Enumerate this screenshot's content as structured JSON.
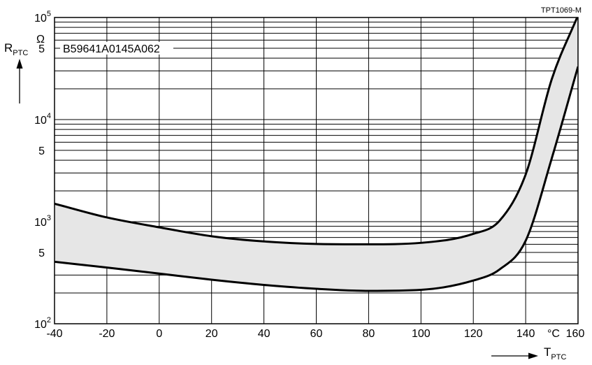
{
  "chart_data": {
    "type": "area",
    "title": "B59641A0145A062",
    "figure_code": "TPT1069-M",
    "x": [
      -40,
      -20,
      0,
      20,
      40,
      60,
      80,
      100,
      120,
      130,
      140,
      150,
      160
    ],
    "series": [
      {
        "name": "",
        "values": [
          1500,
          1100,
          880,
          720,
          640,
          605,
          600,
          620,
          760,
          1020,
          2900,
          25000,
          105000
        ]
      },
      {
        "name": "",
        "values": [
          405,
          355,
          310,
          270,
          240,
          220,
          210,
          215,
          265,
          340,
          650,
          4200,
          33000
        ]
      }
    ],
    "x_ticks": [
      "-40",
      "-20",
      "0",
      "20",
      "40",
      "60",
      "80",
      "100",
      "120",
      "140",
      "160"
    ],
    "x_unit": "°C",
    "xlabel": {
      "base": "T",
      "sub": "PTC"
    },
    "ylabel": {
      "base": "R",
      "sub": "PTC",
      "unit": "Ω"
    },
    "y_ticks": [
      {
        "base": "10",
        "exp": "2"
      },
      {
        "base": "5",
        "exp": ""
      },
      {
        "base": "10",
        "exp": "3"
      },
      {
        "base": "5",
        "exp": ""
      },
      {
        "base": "10",
        "exp": "4"
      },
      {
        "base": "5",
        "exp": ""
      },
      {
        "base": "10",
        "exp": "5"
      }
    ],
    "xlim": [
      -40,
      160
    ],
    "ylim": [
      100,
      100000
    ],
    "y_scale": "log",
    "grid": true,
    "band_fill": "#e6e6e6",
    "line_color": "#000000"
  }
}
